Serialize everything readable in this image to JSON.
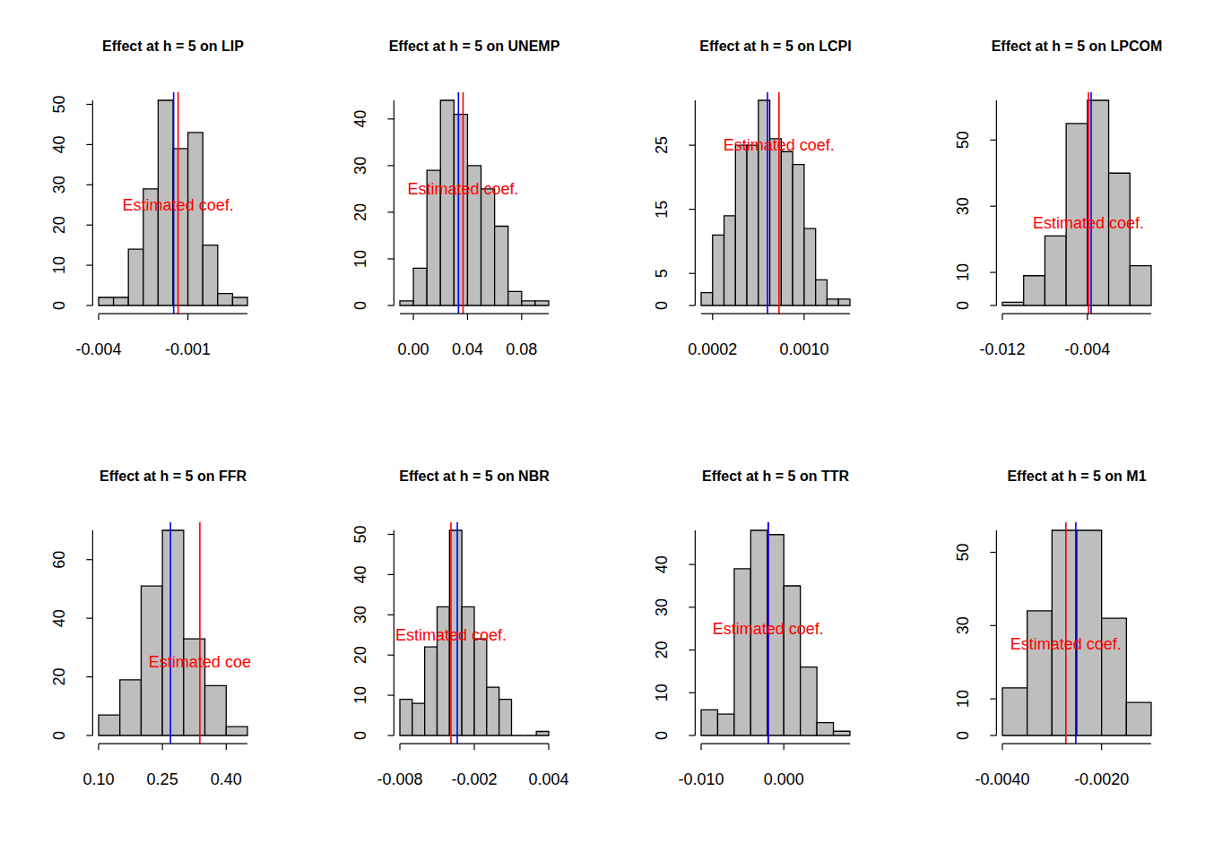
{
  "chart_data": [
    {
      "type": "histogram",
      "title": "Effect at h = 5 on LIP",
      "color": "#bebebe",
      "bins": [
        -0.004,
        -0.0035,
        -0.003,
        -0.0025,
        -0.002,
        -0.0015,
        -0.001,
        -0.0005,
        0,
        0.0005,
        0.001
      ],
      "values": [
        2,
        2,
        14,
        29,
        51,
        39,
        43,
        15,
        3,
        2
      ],
      "xlim": [
        -0.004,
        0.001
      ],
      "ylim": [
        0,
        51
      ],
      "xticks": [
        -0.004,
        -0.001
      ],
      "yticks": [
        0,
        10,
        20,
        30,
        40,
        50
      ],
      "ref_lines": [
        {
          "value": -0.00133,
          "color": "#ff0000"
        },
        {
          "value": -0.00148,
          "color": "#0000ff"
        }
      ],
      "annotations": [
        {
          "text": "Estimated coef.",
          "x": -0.00133,
          "y": 25,
          "color": "#ff0000"
        }
      ]
    },
    {
      "type": "histogram",
      "title": "Effect at h = 5 on UNEMP",
      "color": "#bebebe",
      "bins": [
        -0.01,
        0,
        0.01,
        0.02,
        0.03,
        0.04,
        0.05,
        0.06,
        0.07,
        0.08,
        0.09,
        0.1
      ],
      "values": [
        1,
        8,
        29,
        44,
        41,
        30,
        25,
        17,
        3,
        1,
        1
      ],
      "xlim": [
        -0.01,
        0.1
      ],
      "ylim": [
        0,
        44
      ],
      "xticks": [
        {
          "value": 0,
          "label": "0.00"
        },
        0.04,
        0.08
      ],
      "yticks": [
        0,
        10,
        20,
        30,
        40
      ],
      "ref_lines": [
        {
          "value": 0.0367,
          "color": "#ff0000"
        },
        {
          "value": 0.0333,
          "color": "#0000ff"
        }
      ],
      "annotations": [
        {
          "text": "Estimated coef.",
          "x": 0.0367,
          "y": 25,
          "color": "#ff0000"
        }
      ]
    },
    {
      "type": "histogram",
      "title": "Effect at h = 5 on LCPI",
      "color": "#bebebe",
      "bins": [
        0.0001,
        0.0002,
        0.0003,
        0.0004,
        0.0005,
        0.0006,
        0.0007,
        0.0008,
        0.0009,
        0.001,
        0.0011,
        0.0012,
        0.0013,
        0.0014
      ],
      "values": [
        2,
        11,
        14,
        25,
        25,
        32,
        26,
        24,
        22,
        12,
        4,
        1,
        1
      ],
      "xlim": [
        0.0001,
        0.0014
      ],
      "ylim": [
        0,
        32
      ],
      "xticks": [
        0.0002,
        {
          "value": 0.001,
          "label": "0.0010"
        }
      ],
      "yticks": [
        0,
        5,
        15,
        25
      ],
      "ref_lines": [
        {
          "value": 0.00078,
          "color": "#ff0000"
        },
        {
          "value": 0.00068,
          "color": "#0000ff"
        }
      ],
      "annotations": [
        {
          "text": "Estimated coef.",
          "x": 0.00078,
          "y": 25,
          "color": "#ff0000"
        }
      ]
    },
    {
      "type": "histogram",
      "title": "Effect at h = 5 on LPCOM",
      "color": "#bebebe",
      "bins": [
        -0.012,
        -0.01,
        -0.008,
        -0.006,
        -0.004,
        -0.002,
        0,
        0.002
      ],
      "values": [
        1,
        9,
        21,
        55,
        62,
        40,
        12
      ],
      "xlim": [
        -0.012,
        0.002
      ],
      "ylim": [
        0,
        62
      ],
      "xticks": [
        -0.012,
        -0.004
      ],
      "yticks": [
        0,
        10,
        30,
        50
      ],
      "ref_lines": [
        {
          "value": -0.0039,
          "color": "#ff0000"
        },
        {
          "value": -0.00365,
          "color": "#0000ff"
        }
      ],
      "annotations": [
        {
          "text": "Estimated coef.",
          "x": -0.0039,
          "y": 25,
          "color": "#ff0000"
        }
      ]
    },
    {
      "type": "histogram",
      "title": "Effect at h = 5 on FFR",
      "color": "#bebebe",
      "bins": [
        0.1,
        0.15,
        0.2,
        0.25,
        0.3,
        0.35,
        0.4,
        0.45
      ],
      "values": [
        7,
        19,
        51,
        70,
        33,
        17,
        3
      ],
      "xlim": [
        0.1,
        0.45
      ],
      "ylim": [
        0,
        70
      ],
      "xticks": [
        {
          "value": 0.1,
          "label": "0.10"
        },
        0.25,
        {
          "value": 0.4,
          "label": "0.40"
        }
      ],
      "yticks": [
        0,
        20,
        40,
        60
      ],
      "ref_lines": [
        {
          "value": 0.338,
          "color": "#ff0000"
        },
        {
          "value": 0.269,
          "color": "#0000ff"
        }
      ],
      "annotations": [
        {
          "text": "Estimated coe",
          "x": 0.338,
          "y": 25,
          "color": "#ff0000"
        }
      ]
    },
    {
      "type": "histogram",
      "title": "Effect at h = 5 on NBR",
      "color": "#bebebe",
      "bins": [
        -0.008,
        -0.007,
        -0.006,
        -0.005,
        -0.004,
        -0.003,
        -0.002,
        -0.001,
        0,
        0.001,
        0.002,
        0.003,
        0.004
      ],
      "values": [
        9,
        8,
        22,
        32,
        51,
        32,
        24,
        12,
        9,
        0,
        0,
        1
      ],
      "xlim": [
        -0.008,
        0.004
      ],
      "ylim": [
        0,
        51
      ],
      "xticks": [
        -0.008,
        -0.002,
        0.004
      ],
      "yticks": [
        0,
        10,
        20,
        30,
        40,
        50
      ],
      "ref_lines": [
        {
          "value": -0.00388,
          "color": "#ff0000"
        },
        {
          "value": -0.00337,
          "color": "#0000ff"
        }
      ],
      "annotations": [
        {
          "text": "Estimated coef.",
          "x": -0.00388,
          "y": 25,
          "color": "#ff0000"
        }
      ]
    },
    {
      "type": "histogram",
      "title": "Effect at h = 5 on TTR",
      "color": "#bebebe",
      "bins": [
        -0.01,
        -0.008,
        -0.006,
        -0.004,
        -0.002,
        0,
        0.002,
        0.004,
        0.006,
        0.008
      ],
      "values": [
        6,
        5,
        39,
        48,
        47,
        35,
        16,
        3,
        1
      ],
      "xlim": [
        -0.01,
        0.008
      ],
      "ylim": [
        0,
        48
      ],
      "xticks": [
        {
          "value": -0.01,
          "label": "-0.010"
        },
        {
          "value": 0,
          "label": "0.000"
        }
      ],
      "yticks": [
        0,
        10,
        20,
        30,
        40
      ],
      "ref_lines": [
        {
          "value": -0.0019,
          "color": "#ff0000"
        },
        {
          "value": -0.00187,
          "color": "#0000ff"
        }
      ],
      "annotations": [
        {
          "text": "Estimated coef.",
          "x": -0.0019,
          "y": 25,
          "color": "#ff0000"
        }
      ]
    },
    {
      "type": "histogram",
      "title": "Effect at h = 5 on M1",
      "color": "#bebebe",
      "bins": [
        -0.004,
        -0.0035,
        -0.003,
        -0.0025,
        -0.002,
        -0.0015,
        -0.001
      ],
      "values": [
        13,
        34,
        56,
        56,
        32,
        9
      ],
      "xlim": [
        -0.004,
        -0.001
      ],
      "ylim": [
        0,
        56
      ],
      "xticks": [
        {
          "value": -0.004,
          "label": "-0.0040"
        },
        {
          "value": -0.002,
          "label": "-0.0020"
        }
      ],
      "yticks": [
        0,
        10,
        30,
        50
      ],
      "ref_lines": [
        {
          "value": -0.00272,
          "color": "#ff0000"
        },
        {
          "value": -0.00252,
          "color": "#0000ff"
        }
      ],
      "annotations": [
        {
          "text": "Estimated coef.",
          "x": -0.00272,
          "y": 25,
          "color": "#ff0000"
        }
      ]
    }
  ]
}
